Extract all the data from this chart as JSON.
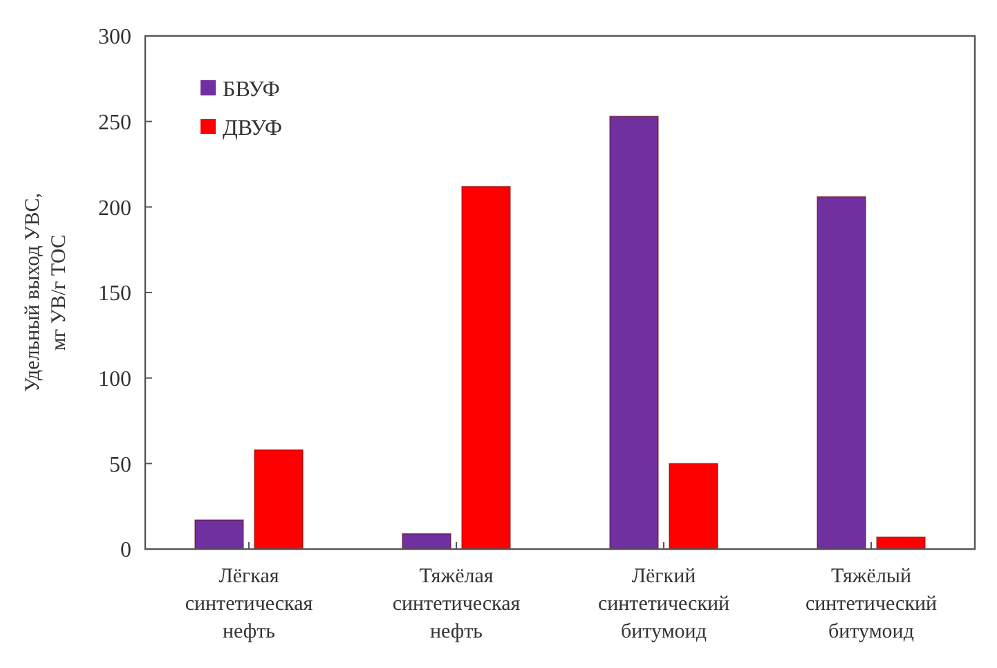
{
  "chart_data": {
    "type": "bar",
    "ylabel": "Удельный выход УВС,\nмг УВ/г ТОС",
    "categories": [
      "Лёгкая\nсинтетическая\nнефть",
      "Тяжёлая\nсинтетическая\nнефть",
      "Лёгкий\nсинтетический\nбитумоид",
      "Тяжёлый\nсинтетический\nбитумоид"
    ],
    "series": [
      {
        "name": "БВУФ",
        "color": "#7030a0",
        "values": [
          17,
          9,
          253,
          206
        ]
      },
      {
        "name": "ДВУФ",
        "color": "#ff0000",
        "values": [
          58,
          212,
          50,
          7
        ]
      }
    ],
    "ylim": [
      0,
      300
    ],
    "yticks": [
      0,
      50,
      100,
      150,
      200,
      250,
      300
    ],
    "grid": false,
    "legend": "top left"
  }
}
